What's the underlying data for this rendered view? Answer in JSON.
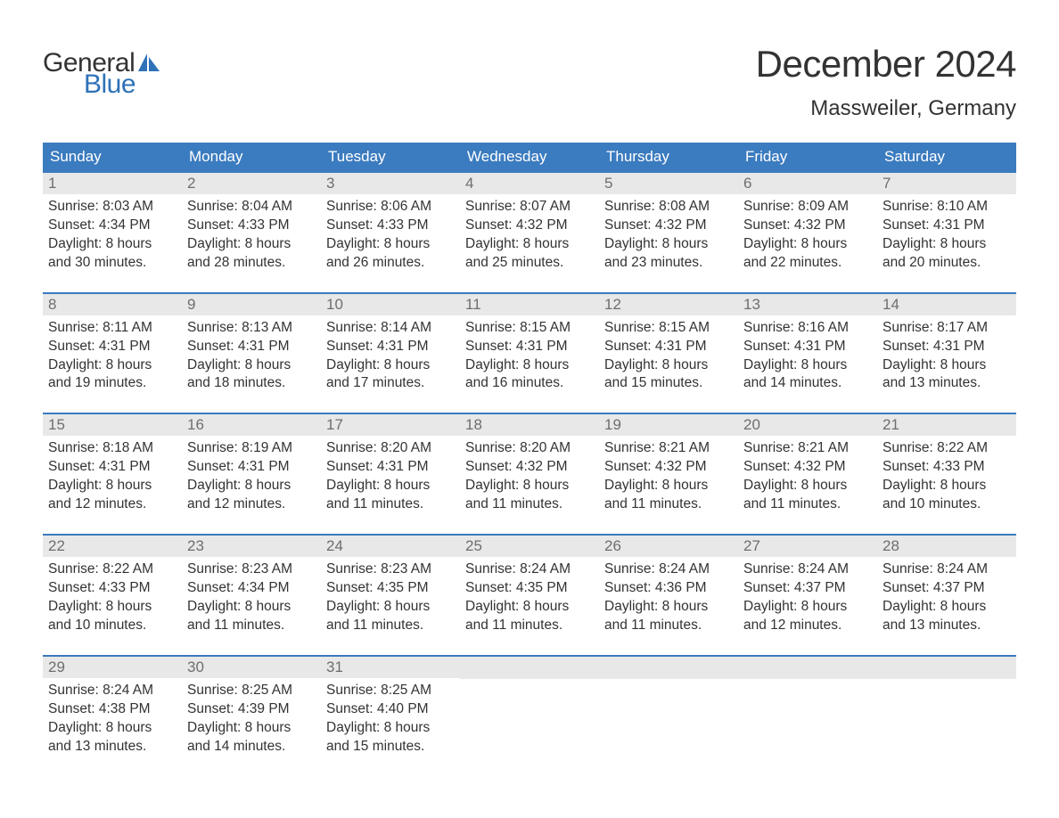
{
  "brand": {
    "part1": "General",
    "part2": "Blue",
    "accent_color": "#2e72b8"
  },
  "title": "December 2024",
  "location": "Massweiler, Germany",
  "colors": {
    "header_bg": "#3b7bbf",
    "header_text": "#ffffff",
    "daynum_bg": "#e8e8e8",
    "daynum_text": "#6e6e6e",
    "body_text": "#333333",
    "week_border": "#3b7bbf",
    "page_bg": "#ffffff"
  },
  "typography": {
    "title_fontsize": 42,
    "location_fontsize": 24,
    "dow_fontsize": 17,
    "daynum_fontsize": 17,
    "body_fontsize": 15.5,
    "font_family": "Arial"
  },
  "days_of_week": [
    "Sunday",
    "Monday",
    "Tuesday",
    "Wednesday",
    "Thursday",
    "Friday",
    "Saturday"
  ],
  "weeks": [
    [
      {
        "n": "1",
        "sunrise": "Sunrise: 8:03 AM",
        "sunset": "Sunset: 4:34 PM",
        "d1": "Daylight: 8 hours",
        "d2": "and 30 minutes."
      },
      {
        "n": "2",
        "sunrise": "Sunrise: 8:04 AM",
        "sunset": "Sunset: 4:33 PM",
        "d1": "Daylight: 8 hours",
        "d2": "and 28 minutes."
      },
      {
        "n": "3",
        "sunrise": "Sunrise: 8:06 AM",
        "sunset": "Sunset: 4:33 PM",
        "d1": "Daylight: 8 hours",
        "d2": "and 26 minutes."
      },
      {
        "n": "4",
        "sunrise": "Sunrise: 8:07 AM",
        "sunset": "Sunset: 4:32 PM",
        "d1": "Daylight: 8 hours",
        "d2": "and 25 minutes."
      },
      {
        "n": "5",
        "sunrise": "Sunrise: 8:08 AM",
        "sunset": "Sunset: 4:32 PM",
        "d1": "Daylight: 8 hours",
        "d2": "and 23 minutes."
      },
      {
        "n": "6",
        "sunrise": "Sunrise: 8:09 AM",
        "sunset": "Sunset: 4:32 PM",
        "d1": "Daylight: 8 hours",
        "d2": "and 22 minutes."
      },
      {
        "n": "7",
        "sunrise": "Sunrise: 8:10 AM",
        "sunset": "Sunset: 4:31 PM",
        "d1": "Daylight: 8 hours",
        "d2": "and 20 minutes."
      }
    ],
    [
      {
        "n": "8",
        "sunrise": "Sunrise: 8:11 AM",
        "sunset": "Sunset: 4:31 PM",
        "d1": "Daylight: 8 hours",
        "d2": "and 19 minutes."
      },
      {
        "n": "9",
        "sunrise": "Sunrise: 8:13 AM",
        "sunset": "Sunset: 4:31 PM",
        "d1": "Daylight: 8 hours",
        "d2": "and 18 minutes."
      },
      {
        "n": "10",
        "sunrise": "Sunrise: 8:14 AM",
        "sunset": "Sunset: 4:31 PM",
        "d1": "Daylight: 8 hours",
        "d2": "and 17 minutes."
      },
      {
        "n": "11",
        "sunrise": "Sunrise: 8:15 AM",
        "sunset": "Sunset: 4:31 PM",
        "d1": "Daylight: 8 hours",
        "d2": "and 16 minutes."
      },
      {
        "n": "12",
        "sunrise": "Sunrise: 8:15 AM",
        "sunset": "Sunset: 4:31 PM",
        "d1": "Daylight: 8 hours",
        "d2": "and 15 minutes."
      },
      {
        "n": "13",
        "sunrise": "Sunrise: 8:16 AM",
        "sunset": "Sunset: 4:31 PM",
        "d1": "Daylight: 8 hours",
        "d2": "and 14 minutes."
      },
      {
        "n": "14",
        "sunrise": "Sunrise: 8:17 AM",
        "sunset": "Sunset: 4:31 PM",
        "d1": "Daylight: 8 hours",
        "d2": "and 13 minutes."
      }
    ],
    [
      {
        "n": "15",
        "sunrise": "Sunrise: 8:18 AM",
        "sunset": "Sunset: 4:31 PM",
        "d1": "Daylight: 8 hours",
        "d2": "and 12 minutes."
      },
      {
        "n": "16",
        "sunrise": "Sunrise: 8:19 AM",
        "sunset": "Sunset: 4:31 PM",
        "d1": "Daylight: 8 hours",
        "d2": "and 12 minutes."
      },
      {
        "n": "17",
        "sunrise": "Sunrise: 8:20 AM",
        "sunset": "Sunset: 4:31 PM",
        "d1": "Daylight: 8 hours",
        "d2": "and 11 minutes."
      },
      {
        "n": "18",
        "sunrise": "Sunrise: 8:20 AM",
        "sunset": "Sunset: 4:32 PM",
        "d1": "Daylight: 8 hours",
        "d2": "and 11 minutes."
      },
      {
        "n": "19",
        "sunrise": "Sunrise: 8:21 AM",
        "sunset": "Sunset: 4:32 PM",
        "d1": "Daylight: 8 hours",
        "d2": "and 11 minutes."
      },
      {
        "n": "20",
        "sunrise": "Sunrise: 8:21 AM",
        "sunset": "Sunset: 4:32 PM",
        "d1": "Daylight: 8 hours",
        "d2": "and 11 minutes."
      },
      {
        "n": "21",
        "sunrise": "Sunrise: 8:22 AM",
        "sunset": "Sunset: 4:33 PM",
        "d1": "Daylight: 8 hours",
        "d2": "and 10 minutes."
      }
    ],
    [
      {
        "n": "22",
        "sunrise": "Sunrise: 8:22 AM",
        "sunset": "Sunset: 4:33 PM",
        "d1": "Daylight: 8 hours",
        "d2": "and 10 minutes."
      },
      {
        "n": "23",
        "sunrise": "Sunrise: 8:23 AM",
        "sunset": "Sunset: 4:34 PM",
        "d1": "Daylight: 8 hours",
        "d2": "and 11 minutes."
      },
      {
        "n": "24",
        "sunrise": "Sunrise: 8:23 AM",
        "sunset": "Sunset: 4:35 PM",
        "d1": "Daylight: 8 hours",
        "d2": "and 11 minutes."
      },
      {
        "n": "25",
        "sunrise": "Sunrise: 8:24 AM",
        "sunset": "Sunset: 4:35 PM",
        "d1": "Daylight: 8 hours",
        "d2": "and 11 minutes."
      },
      {
        "n": "26",
        "sunrise": "Sunrise: 8:24 AM",
        "sunset": "Sunset: 4:36 PM",
        "d1": "Daylight: 8 hours",
        "d2": "and 11 minutes."
      },
      {
        "n": "27",
        "sunrise": "Sunrise: 8:24 AM",
        "sunset": "Sunset: 4:37 PM",
        "d1": "Daylight: 8 hours",
        "d2": "and 12 minutes."
      },
      {
        "n": "28",
        "sunrise": "Sunrise: 8:24 AM",
        "sunset": "Sunset: 4:37 PM",
        "d1": "Daylight: 8 hours",
        "d2": "and 13 minutes."
      }
    ],
    [
      {
        "n": "29",
        "sunrise": "Sunrise: 8:24 AM",
        "sunset": "Sunset: 4:38 PM",
        "d1": "Daylight: 8 hours",
        "d2": "and 13 minutes."
      },
      {
        "n": "30",
        "sunrise": "Sunrise: 8:25 AM",
        "sunset": "Sunset: 4:39 PM",
        "d1": "Daylight: 8 hours",
        "d2": "and 14 minutes."
      },
      {
        "n": "31",
        "sunrise": "Sunrise: 8:25 AM",
        "sunset": "Sunset: 4:40 PM",
        "d1": "Daylight: 8 hours",
        "d2": "and 15 minutes."
      },
      null,
      null,
      null,
      null
    ]
  ]
}
